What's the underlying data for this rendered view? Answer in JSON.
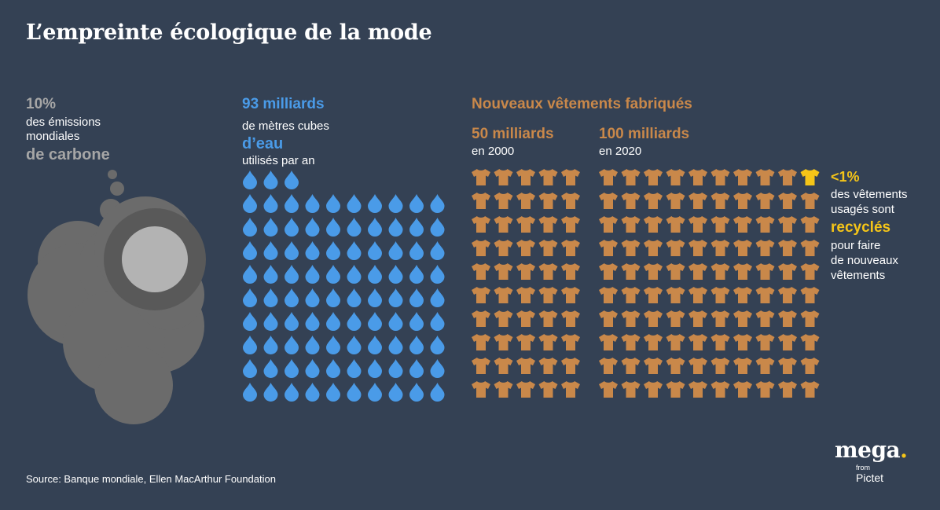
{
  "title": "L’empreinte écologique de la mode",
  "carbon": {
    "percent": "10%",
    "description": "des émissions\nmondiales",
    "keyword": "de carbone",
    "color": "#a6a6a6"
  },
  "water": {
    "headline": "93 milliards",
    "description_1": "de mètres cubes",
    "keyword": "d’eau",
    "description_2": "utilisés par an",
    "color": "#4a9be8",
    "icon": "water-drop-icon"
  },
  "clothes": {
    "headline": "Nouveaux vêtements fabriqués",
    "year_2000": {
      "value": "50 milliards",
      "label": "en 2000"
    },
    "year_2020": {
      "value": "100 milliards",
      "label": "en 2020"
    },
    "color": "#c9884a",
    "highlight_color": "#f5c518",
    "icon": "tshirt-icon"
  },
  "recycling": {
    "percent": "<1%",
    "description_1": "des vêtements\nusagés sont",
    "keyword": "recyclés",
    "description_2": "pour faire\nde nouveaux\nvêtements"
  },
  "source": "Source: Banque mondiale, Ellen MacArthur Foundation",
  "logo": {
    "name": "mega",
    "dot": ".",
    "from": "from",
    "brand": "Pictet"
  }
}
